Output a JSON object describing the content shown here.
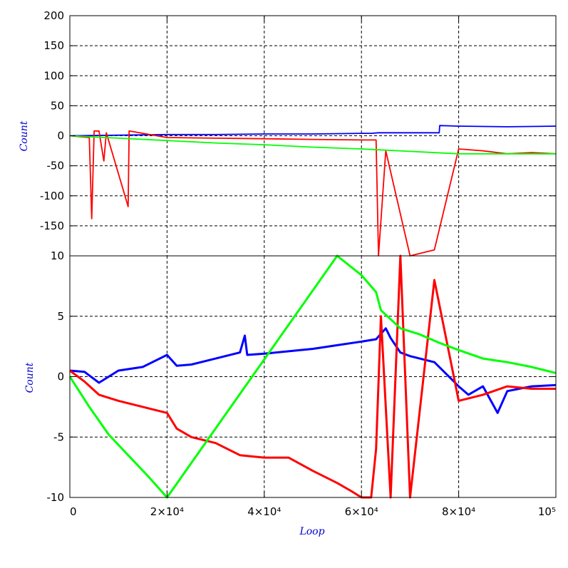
{
  "chart_data": [
    {
      "type": "line",
      "panel": "top",
      "ylabel": "Count",
      "xlim": [
        0,
        100000
      ],
      "ylim": [
        -200,
        200
      ],
      "yticks": [
        -150,
        -100,
        -50,
        0,
        50,
        100,
        150,
        200
      ],
      "ytick_labels": [
        "-150",
        "-100",
        "-50",
        "0",
        "50",
        "100",
        "150",
        "200"
      ],
      "grid": true,
      "series": [
        {
          "color": "#0000ff",
          "x": [
            0,
            10000,
            20000,
            30000,
            40000,
            50000,
            60000,
            62000,
            63500,
            70000,
            76000,
            76100,
            80000,
            90000,
            100000
          ],
          "y": [
            0,
            1,
            2,
            2,
            3,
            3,
            4,
            4,
            5,
            5,
            5,
            17,
            16,
            15,
            16
          ]
        },
        {
          "color": "#ff0000",
          "x": [
            0,
            4000,
            4500,
            5000,
            6000,
            7000,
            7500,
            12000,
            12200,
            20000,
            30000,
            40000,
            50000,
            60000,
            63000,
            63500,
            65000,
            70000,
            75000,
            80000,
            85000,
            90000,
            95000,
            100000
          ],
          "y": [
            0,
            -3,
            -138,
            8,
            8,
            -42,
            5,
            -118,
            8,
            -3,
            -4,
            -5,
            -6,
            -7,
            -7,
            -200,
            -25,
            -200,
            -190,
            -22,
            -25,
            -30,
            -28,
            -30
          ]
        },
        {
          "color": "#00ff00",
          "x": [
            0,
            10000,
            20000,
            30000,
            40000,
            50000,
            60000,
            70000,
            80000,
            90000,
            100000
          ],
          "y": [
            0,
            -4,
            -8,
            -12,
            -15,
            -19,
            -22,
            -26,
            -30,
            -30,
            -30
          ]
        }
      ]
    },
    {
      "type": "line",
      "panel": "bottom",
      "ylabel": "Count",
      "xlabel": "Loop",
      "xlim": [
        0,
        100000
      ],
      "ylim": [
        -10,
        10
      ],
      "xticks": [
        0,
        20000,
        40000,
        60000,
        80000,
        100000
      ],
      "xtick_labels": [
        "0",
        "2×10⁴",
        "4×10⁴",
        "6×10⁴",
        "8×10⁴",
        "10⁵"
      ],
      "yticks": [
        -10,
        -5,
        0,
        5,
        10
      ],
      "ytick_labels": [
        "-10",
        "-5",
        "0",
        "5",
        "10"
      ],
      "grid": true,
      "series": [
        {
          "color": "#0000ff",
          "x": [
            0,
            3000,
            6000,
            8000,
            10000,
            15000,
            20000,
            22000,
            25000,
            30000,
            35000,
            36000,
            36500,
            40000,
            45000,
            50000,
            55000,
            60000,
            63000,
            65000,
            66000,
            68000,
            70000,
            75000,
            80000,
            82000,
            85000,
            88000,
            90000,
            95000,
            100000
          ],
          "y": [
            0.5,
            0.4,
            -0.5,
            0.0,
            0.5,
            0.8,
            1.8,
            0.9,
            1.0,
            1.5,
            2.0,
            3.4,
            1.8,
            1.9,
            2.1,
            2.3,
            2.6,
            2.9,
            3.1,
            4.0,
            3.2,
            2.0,
            1.7,
            1.2,
            -0.8,
            -1.5,
            -0.8,
            -3.0,
            -1.2,
            -0.8,
            -0.7
          ]
        },
        {
          "color": "#ff0000",
          "x": [
            0,
            3000,
            6000,
            10000,
            15000,
            20000,
            22000,
            25000,
            30000,
            35000,
            40000,
            45000,
            50000,
            55000,
            58000,
            60000,
            62000,
            63000,
            64000,
            66000,
            68000,
            70000,
            75000,
            80000,
            85000,
            90000,
            95000,
            100000
          ],
          "y": [
            0.5,
            -0.4,
            -1.5,
            -2.0,
            -2.5,
            -3.0,
            -4.3,
            -5.0,
            -5.5,
            -6.5,
            -6.7,
            -6.7,
            -7.8,
            -8.8,
            -9.5,
            -10,
            -10,
            -6.0,
            5.0,
            -10,
            10,
            -10,
            8.0,
            -2.0,
            -1.5,
            -0.8,
            -1.0,
            -1.0
          ]
        },
        {
          "color": "#00ff00",
          "x": [
            0,
            4000,
            8000,
            12000,
            16000,
            20000,
            55000,
            60000,
            63000,
            64000,
            68000,
            72000,
            76000,
            80000,
            85000,
            90000,
            95000,
            100000
          ],
          "y": [
            0.0,
            -2.5,
            -4.8,
            -6.5,
            -8.2,
            -10.0,
            10.0,
            8.4,
            7.0,
            5.5,
            4.0,
            3.5,
            2.8,
            2.2,
            1.5,
            1.2,
            0.8,
            0.3
          ]
        }
      ]
    }
  ]
}
